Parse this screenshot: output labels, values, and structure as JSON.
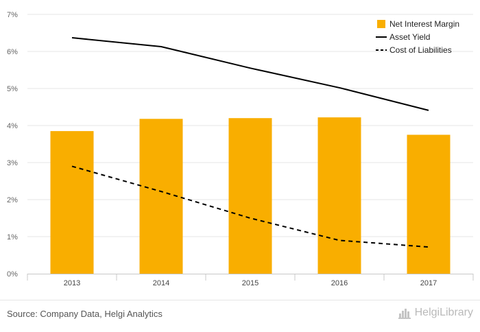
{
  "chart_data": {
    "type": "bar",
    "categories": [
      "2013",
      "2014",
      "2015",
      "2016",
      "2017"
    ],
    "series": [
      {
        "name": "Net Interest Margin",
        "kind": "bar",
        "values": [
          3.85,
          4.18,
          4.2,
          4.22,
          3.75
        ],
        "color": "#f9ae00"
      },
      {
        "name": "Asset Yield",
        "kind": "line",
        "style": "solid",
        "values": [
          6.37,
          6.13,
          5.55,
          5.02,
          4.41
        ],
        "color": "#000000"
      },
      {
        "name": "Cost of Liabilities",
        "kind": "line",
        "style": "dashed",
        "values": [
          2.9,
          2.22,
          1.5,
          0.9,
          0.72
        ],
        "color": "#000000"
      }
    ],
    "ylim": [
      0,
      7
    ],
    "yticks": [
      "0%",
      "1%",
      "2%",
      "3%",
      "4%",
      "5%",
      "6%",
      "7%"
    ],
    "grid": true,
    "legend_position": "top-right"
  },
  "footer": {
    "source": "Source: Company Data, Helgi Analytics",
    "brand": "HelgiLibrary"
  }
}
